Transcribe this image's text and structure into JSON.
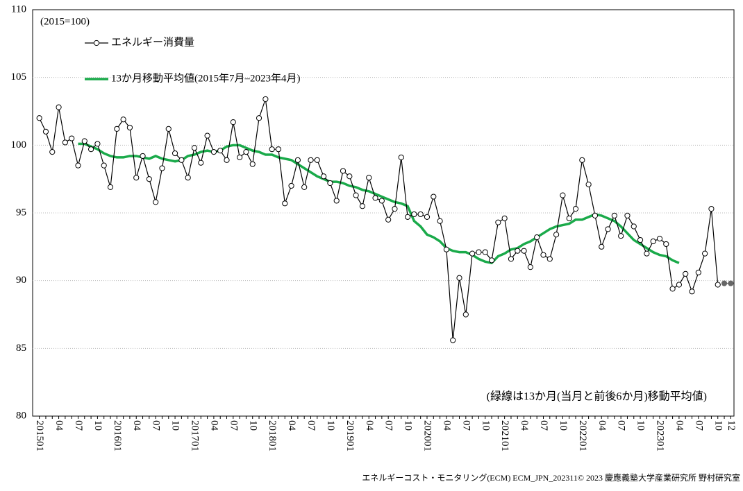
{
  "chart_data": {
    "type": "line",
    "subtitle": "(2015=100)",
    "annotation": "(緑線は13か月(当月と前後6か月)移動平均値)",
    "source": "エネルギーコスト・モニタリング(ECM) ECM_JPN_202311© 2023 慶應義塾大学産業研究所 野村研究室",
    "grid": true,
    "ylim": [
      80,
      110
    ],
    "yticks": [
      80,
      85,
      90,
      95,
      100,
      105,
      110
    ],
    "categories": [
      "201501",
      null,
      null,
      "04",
      null,
      null,
      "07",
      null,
      null,
      "10",
      null,
      null,
      "201601",
      null,
      null,
      "04",
      null,
      null,
      "07",
      null,
      null,
      "10",
      null,
      null,
      "201701",
      null,
      null,
      "04",
      null,
      null,
      "07",
      null,
      null,
      "10",
      null,
      null,
      "201801",
      null,
      null,
      "04",
      null,
      null,
      "07",
      null,
      null,
      "10",
      null,
      null,
      "201901",
      null,
      null,
      "04",
      null,
      null,
      "07",
      null,
      null,
      "10",
      null,
      null,
      "202001",
      null,
      null,
      "04",
      null,
      null,
      "07",
      null,
      null,
      "10",
      null,
      null,
      "202101",
      null,
      null,
      "04",
      null,
      null,
      "07",
      null,
      null,
      "10",
      null,
      null,
      "202201",
      null,
      null,
      "04",
      null,
      null,
      "07",
      null,
      null,
      "10",
      null,
      null,
      "202301",
      null,
      null,
      "04",
      null,
      null,
      "07",
      null,
      null,
      "10",
      null,
      "12"
    ],
    "series": [
      {
        "name": "エネルギー消費量",
        "color": "#000000",
        "marker": "open",
        "values": [
          102.0,
          101.0,
          99.5,
          102.8,
          100.2,
          100.5,
          98.5,
          100.3,
          99.7,
          100.1,
          98.5,
          96.9,
          101.2,
          101.9,
          101.3,
          97.6,
          99.2,
          97.5,
          95.8,
          98.3,
          101.2,
          99.4,
          98.9,
          97.6,
          99.8,
          98.7,
          100.7,
          99.5,
          99.6,
          98.9,
          101.7,
          99.1,
          99.5,
          98.6,
          102.0,
          103.4,
          99.7,
          99.7,
          95.7,
          97.0,
          98.9,
          96.9,
          98.9,
          98.9,
          97.7,
          97.2,
          95.9,
          98.1,
          97.7,
          96.3,
          95.5,
          97.6,
          96.1,
          95.9,
          94.5,
          95.3,
          99.1,
          94.7,
          94.9,
          94.9,
          94.7,
          96.2,
          94.4,
          92.3,
          85.6,
          90.2,
          87.5,
          92.0,
          92.1,
          92.1,
          91.5,
          94.3,
          94.6,
          91.6,
          92.2,
          92.2,
          91.0,
          93.2,
          91.9,
          91.6,
          93.4,
          96.3,
          94.6,
          95.3,
          98.9,
          97.1,
          94.8,
          92.5,
          93.8,
          94.8,
          93.3,
          94.8,
          94.0,
          93.0,
          92.0,
          92.9,
          93.1,
          92.7,
          89.4,
          89.7,
          90.5,
          89.2,
          90.6,
          92.0,
          95.3,
          89.7,
          null,
          null
        ]
      },
      {
        "color": "#666666",
        "marker": "filled",
        "values": [
          null,
          null,
          null,
          null,
          null,
          null,
          null,
          null,
          null,
          null,
          null,
          null,
          null,
          null,
          null,
          null,
          null,
          null,
          null,
          null,
          null,
          null,
          null,
          null,
          null,
          null,
          null,
          null,
          null,
          null,
          null,
          null,
          null,
          null,
          null,
          null,
          null,
          null,
          null,
          null,
          null,
          null,
          null,
          null,
          null,
          null,
          null,
          null,
          null,
          null,
          null,
          null,
          null,
          null,
          null,
          null,
          null,
          null,
          null,
          null,
          null,
          null,
          null,
          null,
          null,
          null,
          null,
          null,
          null,
          null,
          null,
          null,
          null,
          null,
          null,
          null,
          null,
          null,
          null,
          null,
          null,
          null,
          null,
          null,
          null,
          null,
          null,
          null,
          null,
          null,
          null,
          null,
          null,
          null,
          null,
          null,
          null,
          null,
          null,
          null,
          null,
          null,
          null,
          null,
          null,
          null,
          89.8,
          89.8
        ]
      },
      {
        "name": "13か月移動平均値(2015年7月–2023年4月)",
        "color": "#1aaa4a",
        "marker": "none",
        "values": [
          null,
          null,
          null,
          null,
          null,
          null,
          100.1,
          100.1,
          99.9,
          99.7,
          99.4,
          99.2,
          99.1,
          99.1,
          99.2,
          99.2,
          99.1,
          99.0,
          99.2,
          99.0,
          98.9,
          98.8,
          98.9,
          99.2,
          99.3,
          99.5,
          99.6,
          99.5,
          99.6,
          99.9,
          100.0,
          100.0,
          99.8,
          99.6,
          99.5,
          99.3,
          99.3,
          99.1,
          99.0,
          98.9,
          98.6,
          98.3,
          98.0,
          97.7,
          97.5,
          97.3,
          97.3,
          97.2,
          97.0,
          96.9,
          96.7,
          96.6,
          96.4,
          96.2,
          96.0,
          95.8,
          95.7,
          95.5,
          94.4,
          94.0,
          93.4,
          93.2,
          92.9,
          92.4,
          92.2,
          92.1,
          92.1,
          91.9,
          91.6,
          91.4,
          91.3,
          91.8,
          92.0,
          92.3,
          92.4,
          92.7,
          92.9,
          93.2,
          93.5,
          93.8,
          94.0,
          94.1,
          94.2,
          94.5,
          94.5,
          94.7,
          94.9,
          94.8,
          94.6,
          94.4,
          94.0,
          93.5,
          93.0,
          92.7,
          92.4,
          92.1,
          91.9,
          91.8,
          91.5,
          91.3,
          null,
          null,
          null,
          null,
          null,
          null,
          null,
          null
        ]
      }
    ]
  }
}
